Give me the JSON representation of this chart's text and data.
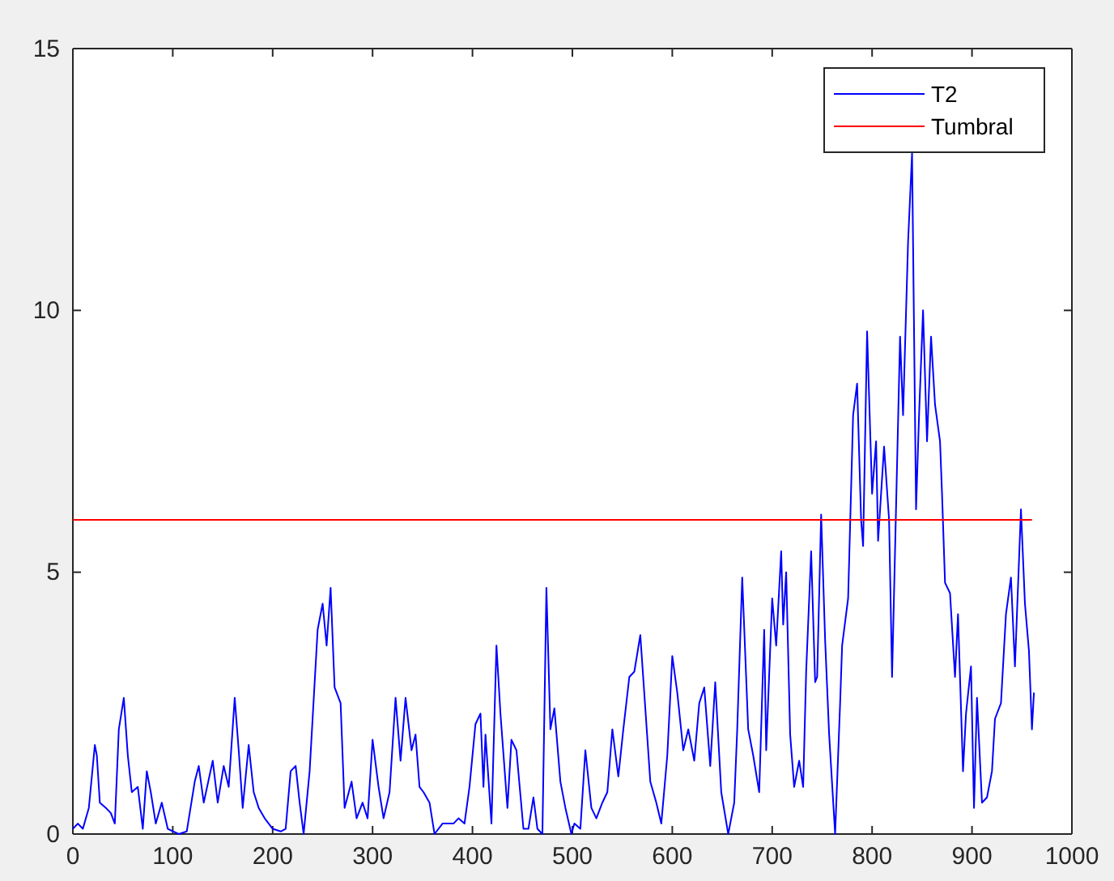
{
  "chart_data": {
    "type": "line",
    "xlim": [
      0,
      1000
    ],
    "ylim": [
      0,
      15
    ],
    "xticks": [
      0,
      100,
      200,
      300,
      400,
      500,
      600,
      700,
      800,
      900,
      1000
    ],
    "yticks": [
      0,
      5,
      10,
      15
    ],
    "grid": false,
    "legend": "top right",
    "line_style": "solid",
    "marker": "none",
    "series": [
      {
        "name": "T2",
        "color": "#0000ff",
        "x": [
          0,
          5,
          10,
          16,
          22,
          24,
          27,
          33,
          38,
          42,
          46,
          51,
          55,
          59,
          65,
          70,
          74,
          78,
          83,
          89,
          95,
          106,
          114,
          122,
          126,
          131,
          140,
          145,
          151,
          156,
          162,
          166,
          170,
          176,
          181,
          186,
          192,
          200,
          208,
          213,
          218,
          223,
          227,
          231,
          237,
          245,
          250,
          254,
          258,
          262,
          268,
          272,
          279,
          284,
          290,
          295,
          300,
          306,
          311,
          317,
          323,
          328,
          333,
          339,
          343,
          347,
          351,
          357,
          362,
          370,
          381,
          386,
          392,
          397,
          403,
          408,
          411,
          413,
          419,
          424,
          428,
          435,
          439,
          444,
          451,
          456,
          461,
          465,
          470,
          474,
          478,
          482,
          488,
          493,
          499,
          502,
          508,
          513,
          519,
          524,
          530,
          535,
          540,
          546,
          551,
          557,
          562,
          568,
          573,
          578,
          584,
          589,
          595,
          600,
          605,
          611,
          616,
          622,
          627,
          632,
          638,
          643,
          649,
          656,
          662,
          665,
          670,
          676,
          681,
          687,
          692,
          694,
          700,
          704,
          709,
          711,
          714,
          718,
          722,
          727,
          731,
          734,
          739,
          743,
          745,
          749,
          753,
          757,
          763,
          768,
          770,
          776,
          781,
          785,
          789,
          791,
          795,
          800,
          804,
          806,
          812,
          817,
          820,
          828,
          831,
          836,
          840,
          844,
          847,
          851,
          855,
          859,
          863,
          868,
          870,
          873,
          878,
          883,
          886,
          891,
          894,
          899,
          902,
          905,
          910,
          915,
          920,
          923,
          929,
          934,
          939,
          943,
          949,
          953,
          957,
          960,
          962
        ],
        "values": [
          0.1,
          0.2,
          0.1,
          0.5,
          1.7,
          1.5,
          0.6,
          0.5,
          0.4,
          0.2,
          2.0,
          2.6,
          1.5,
          0.8,
          0.9,
          0.1,
          1.2,
          0.8,
          0.2,
          0.6,
          0.1,
          0,
          0.05,
          1.0,
          1.3,
          0.6,
          1.4,
          0.6,
          1.3,
          0.9,
          2.6,
          1.6,
          0.5,
          1.7,
          0.8,
          0.5,
          0.3,
          0.1,
          0.05,
          0.1,
          1.2,
          1.3,
          0.6,
          0,
          1.2,
          3.9,
          4.4,
          3.6,
          4.7,
          2.8,
          2.5,
          0.5,
          1.0,
          0.3,
          0.6,
          0.3,
          1.8,
          0.9,
          0.3,
          0.8,
          2.6,
          1.4,
          2.6,
          1.6,
          1.9,
          0.9,
          0.8,
          0.6,
          0,
          0.2,
          0.2,
          0.3,
          0.2,
          0.9,
          2.1,
          2.3,
          0.9,
          1.9,
          0.2,
          3.6,
          2.3,
          0.5,
          1.8,
          1.6,
          0.1,
          0.1,
          0.7,
          0.1,
          0,
          4.7,
          2.0,
          2.4,
          1.0,
          0.5,
          0,
          0.2,
          0.1,
          1.6,
          0.5,
          0.3,
          0.6,
          0.8,
          2.0,
          1.1,
          2.0,
          3.0,
          3.1,
          3.8,
          2.4,
          1.0,
          0.6,
          0.2,
          1.5,
          3.4,
          2.7,
          1.6,
          2.0,
          1.4,
          2.5,
          2.8,
          1.3,
          2.9,
          0.8,
          0,
          0.6,
          2.0,
          4.9,
          2.0,
          1.5,
          0.8,
          3.9,
          1.6,
          4.5,
          3.6,
          5.4,
          4.0,
          5.0,
          1.9,
          0.9,
          1.4,
          0.9,
          3.1,
          5.4,
          2.9,
          3.0,
          6.1,
          3.7,
          1.9,
          0,
          2.5,
          3.6,
          4.5,
          8.0,
          8.6,
          6.0,
          5.5,
          9.6,
          6.5,
          7.5,
          5.6,
          7.4,
          6.0,
          3.0,
          9.5,
          8.0,
          11.3,
          13.0,
          6.2,
          8.0,
          10.0,
          7.5,
          9.5,
          8.2,
          7.5,
          6.5,
          4.8,
          4.6,
          3.0,
          4.2,
          1.2,
          2.3,
          3.2,
          0.5,
          2.6,
          0.6,
          0.7,
          1.2,
          2.2,
          2.5,
          4.2,
          4.9,
          3.2,
          6.2,
          4.4,
          3.5,
          2.0,
          2.7
        ]
      },
      {
        "name": "Tumbral",
        "color": "#ff0000",
        "x": [
          0,
          960
        ],
        "values": [
          6,
          6
        ]
      }
    ]
  }
}
